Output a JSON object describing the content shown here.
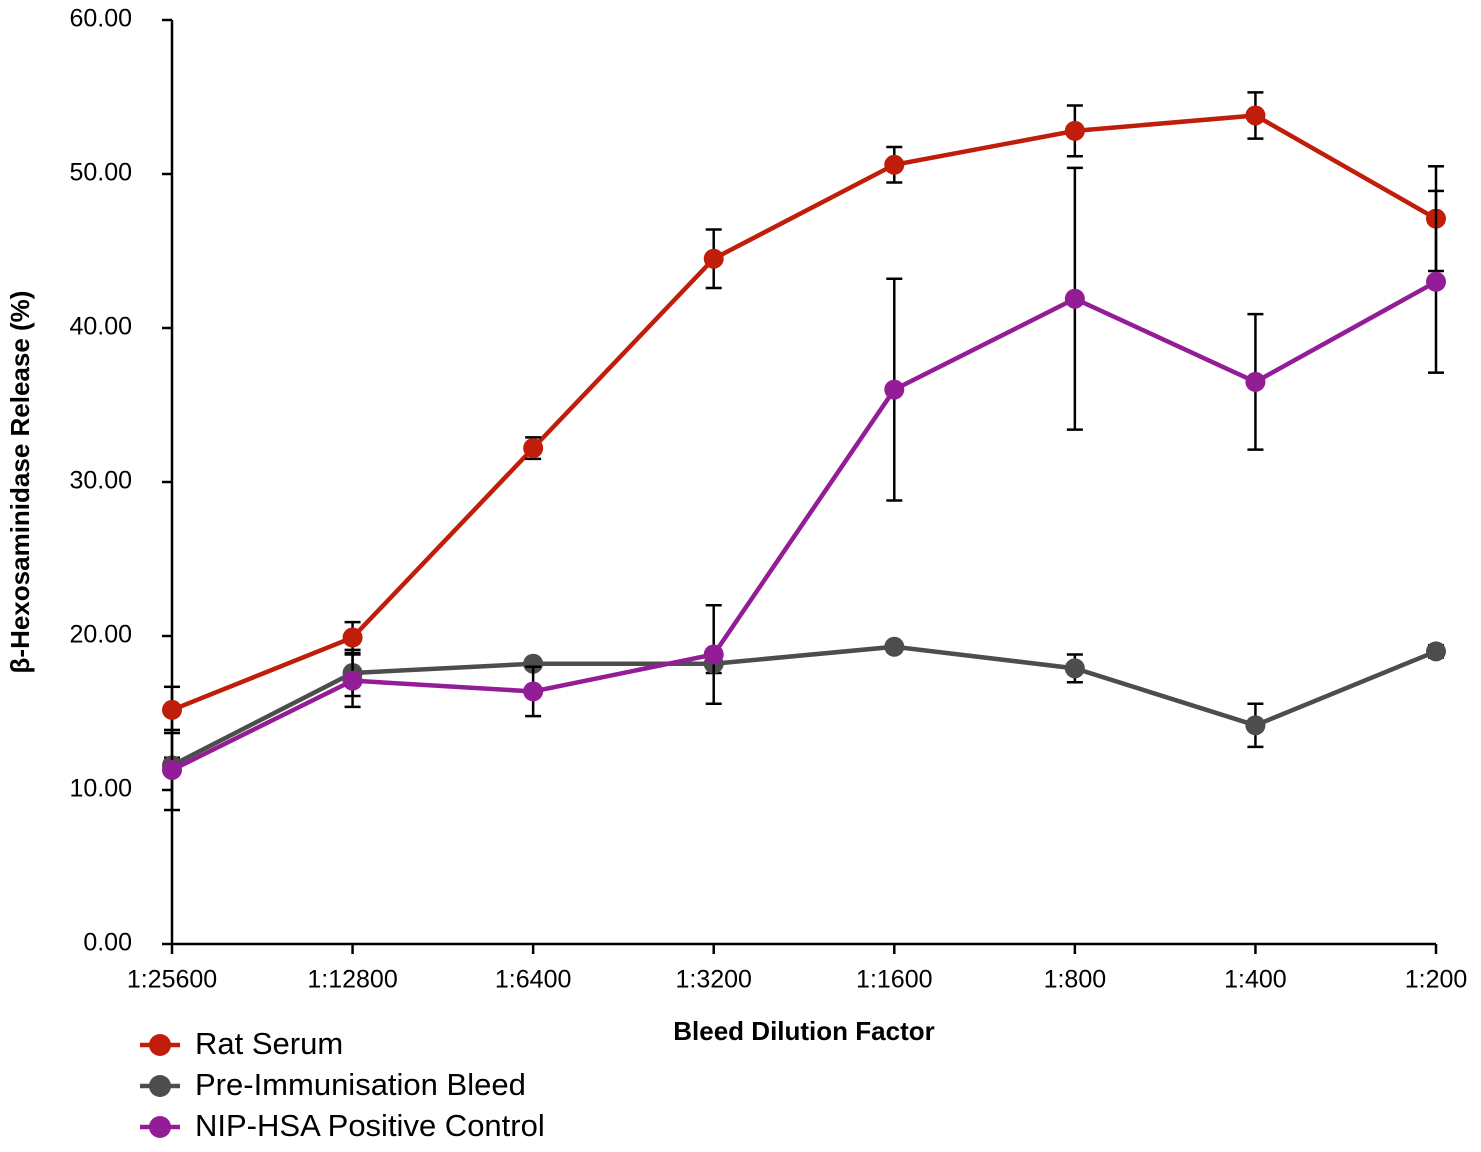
{
  "chart_data": {
    "type": "line",
    "x_label": "Bleed Dilution Factor",
    "y_label": "β-Hexosaminidase Release (%)",
    "categories": [
      "1:25600",
      "1:12800",
      "1:6400",
      "1:3200",
      "1:1600",
      "1:800",
      "1:400",
      "1:200"
    ],
    "series": [
      {
        "name": "Rat Serum",
        "color": "#c01d0b",
        "values": [
          15.2,
          19.9,
          32.2,
          44.5,
          50.6,
          52.8,
          53.8,
          47.1
        ],
        "errors": [
          1.5,
          1.0,
          0.7,
          1.9,
          1.15,
          1.65,
          1.5,
          3.4
        ]
      },
      {
        "name": "Pre-Immunisation Bleed",
        "color": "#4d4d4d",
        "values": [
          11.6,
          17.6,
          18.2,
          18.2,
          19.3,
          17.9,
          14.2,
          19.0
        ],
        "errors": [
          0.5,
          1.5,
          0.3,
          0.6,
          0.3,
          0.9,
          1.4,
          0.4
        ]
      },
      {
        "name": "NIP-HSA Positive Control",
        "color": "#921d96",
        "values": [
          11.3,
          17.1,
          16.4,
          18.8,
          36.0,
          41.9,
          36.5,
          43.0
        ],
        "errors": [
          2.6,
          1.7,
          1.6,
          3.2,
          7.2,
          8.5,
          4.4,
          5.9
        ]
      }
    ],
    "ylim": [
      0,
      60
    ],
    "yticks": [
      {
        "value": 0,
        "label": "0.00"
      },
      {
        "value": 10,
        "label": "10.00"
      },
      {
        "value": 20,
        "label": "20.00"
      },
      {
        "value": 30,
        "label": "30.00"
      },
      {
        "value": 40,
        "label": "40.00"
      },
      {
        "value": 50,
        "label": "50.00"
      },
      {
        "value": 60,
        "label": "60.00"
      }
    ],
    "grid": false,
    "legend": "bottom-left"
  }
}
